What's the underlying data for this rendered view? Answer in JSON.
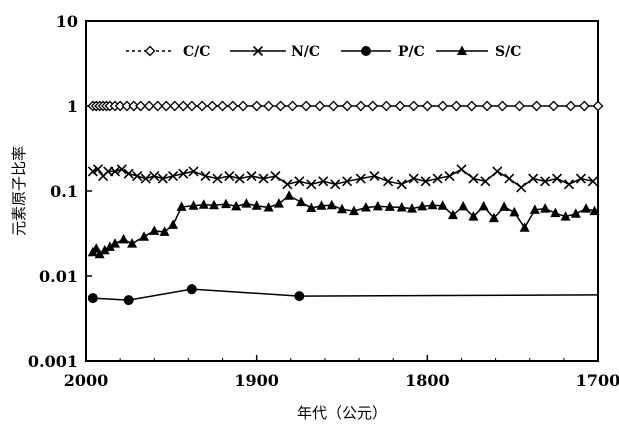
{
  "chart_data": {
    "type": "line",
    "xlabel": "年代（公元）",
    "ylabel": "元素原子比率",
    "x_ticks": [
      2000,
      1900,
      1800,
      1700
    ],
    "x_range": [
      2000,
      1700
    ],
    "x_reversed": true,
    "y_ticks": [
      "0.001",
      "0.01",
      "0.1",
      "1",
      "10"
    ],
    "y_range": [
      0.001,
      10
    ],
    "y_scale": "log",
    "grid": false,
    "legend_position": "top",
    "series": [
      {
        "name": "C/C",
        "marker": "diamond-open",
        "line": "solid",
        "x": [
          1996,
          1994,
          1992,
          1990,
          1988,
          1986,
          1983,
          1980,
          1976,
          1972,
          1968,
          1963,
          1958,
          1953,
          1948,
          1943,
          1938,
          1932,
          1926,
          1920,
          1914,
          1908,
          1900,
          1893,
          1886,
          1879,
          1871,
          1863,
          1855,
          1847,
          1839,
          1832,
          1824,
          1816,
          1808,
          1800,
          1791,
          1783,
          1774,
          1765,
          1756,
          1746,
          1736,
          1726,
          1716,
          1708,
          1700
        ],
        "values": [
          1,
          1,
          1,
          1,
          1,
          1,
          1,
          1,
          1,
          1,
          1,
          1,
          1,
          1,
          1,
          1,
          1,
          1,
          1,
          1,
          1,
          1,
          1,
          1,
          1,
          1,
          1,
          1,
          1,
          1,
          1,
          1,
          1,
          1,
          1,
          1,
          1,
          1,
          1,
          1,
          1,
          1,
          1,
          1,
          1,
          1,
          1
        ]
      },
      {
        "name": "N/C",
        "marker": "x",
        "line": "solid",
        "x": [
          1996,
          1993,
          1990,
          1987,
          1983,
          1979,
          1975,
          1970,
          1965,
          1960,
          1955,
          1949,
          1943,
          1937,
          1930,
          1923,
          1916,
          1910,
          1903,
          1896,
          1889,
          1882,
          1875,
          1868,
          1861,
          1854,
          1847,
          1839,
          1831,
          1823,
          1815,
          1808,
          1801,
          1794,
          1787,
          1780,
          1773,
          1766,
          1759,
          1752,
          1745,
          1738,
          1731,
          1724,
          1717,
          1710,
          1703
        ],
        "values": [
          0.17,
          0.18,
          0.15,
          0.17,
          0.17,
          0.18,
          0.16,
          0.15,
          0.14,
          0.15,
          0.14,
          0.15,
          0.16,
          0.17,
          0.15,
          0.14,
          0.15,
          0.14,
          0.15,
          0.14,
          0.15,
          0.12,
          0.13,
          0.12,
          0.13,
          0.12,
          0.13,
          0.14,
          0.15,
          0.13,
          0.12,
          0.14,
          0.13,
          0.14,
          0.15,
          0.18,
          0.14,
          0.13,
          0.17,
          0.14,
          0.11,
          0.14,
          0.13,
          0.14,
          0.12,
          0.14,
          0.13
        ]
      },
      {
        "name": "P/C",
        "marker": "circle-filled",
        "line": "solid",
        "x": [
          1996,
          1975,
          1938,
          1875,
          1700
        ],
        "values": [
          0.0055,
          0.0052,
          0.007,
          0.0058,
          0.006
        ]
      },
      {
        "name": "S/C",
        "marker": "triangle-filled",
        "line": "solid",
        "x": [
          1996,
          1994,
          1992,
          1989,
          1986,
          1983,
          1978,
          1973,
          1966,
          1960,
          1954,
          1949,
          1944,
          1937,
          1931,
          1925,
          1918,
          1912,
          1906,
          1900,
          1893,
          1887,
          1881,
          1874,
          1868,
          1862,
          1856,
          1850,
          1843,
          1836,
          1829,
          1822,
          1815,
          1809,
          1803,
          1797,
          1791,
          1785,
          1779,
          1773,
          1767,
          1761,
          1755,
          1749,
          1743,
          1737,
          1731,
          1725,
          1719,
          1713,
          1707,
          1702
        ],
        "values": [
          0.019,
          0.021,
          0.018,
          0.02,
          0.022,
          0.024,
          0.027,
          0.024,
          0.029,
          0.034,
          0.033,
          0.04,
          0.065,
          0.067,
          0.069,
          0.068,
          0.07,
          0.066,
          0.071,
          0.067,
          0.064,
          0.071,
          0.088,
          0.074,
          0.063,
          0.067,
          0.068,
          0.061,
          0.058,
          0.064,
          0.066,
          0.065,
          0.064,
          0.062,
          0.066,
          0.068,
          0.067,
          0.052,
          0.066,
          0.05,
          0.066,
          0.048,
          0.065,
          0.056,
          0.037,
          0.06,
          0.062,
          0.055,
          0.05,
          0.054,
          0.062,
          0.058
        ]
      }
    ]
  }
}
